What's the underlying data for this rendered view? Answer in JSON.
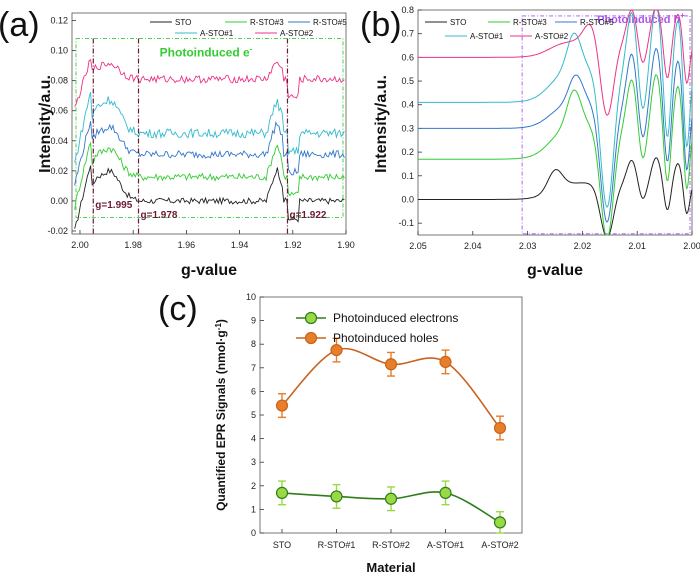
{
  "chart_data": [
    {
      "panel": "(a)",
      "type": "line",
      "xlabel": "g-value",
      "ylabel": "Intensity/a.u.",
      "xlim": [
        2.003,
        1.9
      ],
      "ylim": [
        -0.022,
        0.125
      ],
      "xticks": [
        {
          "v": 2.0,
          "label": "2.00"
        },
        {
          "v": 1.98,
          "label": "1.98"
        },
        {
          "v": 1.96,
          "label": "1.96"
        },
        {
          "v": 1.94,
          "label": "1.94"
        },
        {
          "v": 1.92,
          "label": "1.92"
        },
        {
          "v": 1.9,
          "label": "1.90"
        }
      ],
      "yticks": [
        {
          "v": -0.02,
          "label": "-0.02"
        },
        {
          "v": 0.0,
          "label": "0.00"
        },
        {
          "v": 0.02,
          "label": "0.02"
        },
        {
          "v": 0.04,
          "label": "0.04"
        },
        {
          "v": 0.06,
          "label": "0.06"
        },
        {
          "v": 0.08,
          "label": "0.08"
        },
        {
          "v": 0.1,
          "label": "0.10"
        },
        {
          "v": 0.12,
          "label": "0.12"
        }
      ],
      "series": [
        {
          "name": "STO",
          "color": "#222222",
          "baseline": 0.0,
          "bump": 0.025,
          "noise": 0.002
        },
        {
          "name": "R-STO#3",
          "color": "#33cc33",
          "baseline": 0.016,
          "bump": 0.024,
          "noise": 0.0025
        },
        {
          "name": "R-STO#5",
          "color": "#3377cc",
          "baseline": 0.031,
          "bump": 0.023,
          "noise": 0.0025
        },
        {
          "name": "A-STO#1",
          "color": "#33bbcc",
          "baseline": 0.045,
          "bump": 0.028,
          "noise": 0.003
        },
        {
          "name": "A-STO#2",
          "color": "#ee3388",
          "baseline": 0.081,
          "bump": 0.013,
          "noise": 0.0025
        }
      ],
      "annotations": [
        {
          "text": "g=1.995",
          "g": 1.995
        },
        {
          "text": "g=1.978",
          "g": 1.978
        },
        {
          "text": "g=1.922",
          "g": 1.922
        }
      ],
      "region_label": "Photoinduced e",
      "region_superscript": "-",
      "region_color": "#33cc33"
    },
    {
      "panel": "(b)",
      "type": "line",
      "xlabel": "g-value",
      "ylabel": "Intensity/a.u.",
      "xlim": [
        2.05,
        2.0
      ],
      "ylim": [
        -0.15,
        0.8
      ],
      "xticks": [
        {
          "v": 2.05,
          "label": "2.05"
        },
        {
          "v": 2.04,
          "label": "2.04"
        },
        {
          "v": 2.03,
          "label": "2.03"
        },
        {
          "v": 2.02,
          "label": "2.02"
        },
        {
          "v": 2.01,
          "label": "2.01"
        },
        {
          "v": 2.0,
          "label": "2.00"
        }
      ],
      "yticks": [
        {
          "v": -0.1,
          "label": "-0.1"
        },
        {
          "v": 0.0,
          "label": "0.0"
        },
        {
          "v": 0.1,
          "label": "0.1"
        },
        {
          "v": 0.2,
          "label": "0.2"
        },
        {
          "v": 0.3,
          "label": "0.3"
        },
        {
          "v": 0.4,
          "label": "0.4"
        },
        {
          "v": 0.5,
          "label": "0.5"
        },
        {
          "v": 0.6,
          "label": "0.6"
        },
        {
          "v": 0.7,
          "label": "0.7"
        },
        {
          "v": 0.8,
          "label": "0.8"
        }
      ],
      "series": [
        {
          "name": "STO",
          "color": "#222222",
          "baseline": 0.0,
          "peak": 0.13,
          "peak_g": 2.025,
          "dip": -0.14
        },
        {
          "name": "R-STO#3",
          "color": "#33cc33",
          "baseline": 0.17,
          "peak": 0.43,
          "peak_g": 2.0215,
          "dip": -0.12
        },
        {
          "name": "R-STO#5",
          "color": "#3377cc",
          "baseline": 0.3,
          "peak": 0.5,
          "peak_g": 2.0212,
          "dip": -0.05
        },
        {
          "name": "A-STO#1",
          "color": "#33bbcc",
          "baseline": 0.41,
          "peak": 0.67,
          "peak_g": 2.0215,
          "dip": 0.02
        },
        {
          "name": "A-STO#2",
          "color": "#ee3388",
          "baseline": 0.6,
          "peak": 0.73,
          "peak_g": 2.0185,
          "dip": 0.38
        }
      ],
      "region_label": "Photoinduced h",
      "region_superscript": "+",
      "region_color": "#aa55ee",
      "region_start": 2.031
    },
    {
      "panel": "(c)",
      "type": "line",
      "xlabel": "Material",
      "ylabel": "Quantified EPR Signals (nmol·g",
      "ylabel_sup": "-1",
      "ylabel_end": ")",
      "categories": [
        "STO",
        "R-STO#1",
        "R-STO#2",
        "A-STO#1",
        "A-STO#2"
      ],
      "ylim": [
        0,
        10
      ],
      "yticks": [
        0,
        1,
        2,
        3,
        4,
        5,
        6,
        7,
        8,
        9,
        10
      ],
      "series": [
        {
          "name": "Photoinduced electrons",
          "color": "#2e7d1a",
          "fill": "#9ad946",
          "values": [
            1.7,
            1.55,
            1.45,
            1.7,
            0.45
          ],
          "errors": [
            0.5,
            0.5,
            0.5,
            0.5,
            0.45
          ]
        },
        {
          "name": "Photoinduced holes",
          "color": "#c8641e",
          "fill": "#e87d2a",
          "values": [
            5.4,
            7.75,
            7.15,
            7.25,
            4.45
          ],
          "errors": [
            0.5,
            0.5,
            0.5,
            0.5,
            0.5
          ]
        }
      ]
    }
  ]
}
